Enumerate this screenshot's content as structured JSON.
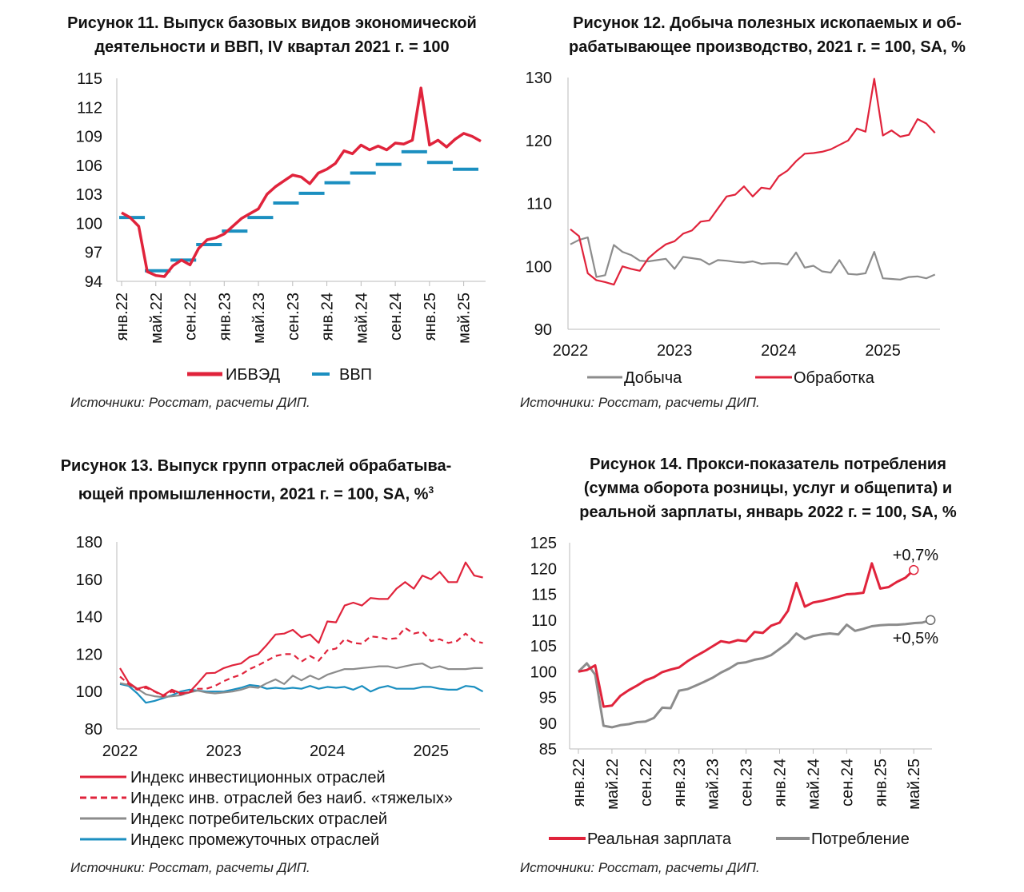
{
  "charts": [
    {
      "title_line1": "Рисунок 11. Выпуск базовых видов экономической",
      "title_line2": "деятельности и ВВП, IV квартал 2021 г. = 100",
      "source": "Источники: Росстат, расчеты ДИП.",
      "legend": [
        "ИБВЭД",
        "ВВП"
      ]
    },
    {
      "title_line1": "Рисунок 12. Добыча полезных ископаемых и об-",
      "title_line2": "рабатывающее производство, 2021 г. = 100, SA, %",
      "source": "Источники: Росстат, расчеты ДИП.",
      "legend": [
        "Добыча",
        "Обработка"
      ]
    },
    {
      "title_line1": "Рисунок 13. Выпуск групп отраслей обрабатыва-",
      "title_line2": "ющей промышленности, 2021 г. = 100, SA, %",
      "title_sup": "3",
      "source": "Источники: Росстат, расчеты ДИП.",
      "legend": [
        "Индекс инвестиционных отраслей",
        "Индекс инв. отраслей без наиб. «тяжелых»",
        "Индекс потребительских отраслей",
        "Индекс промежуточных отраслей"
      ]
    },
    {
      "title_line1": "Рисунок 14. Прокси-показатель потребления",
      "title_line2": "(сумма оборота розницы, услуг и общепита) и",
      "title_line3": "реальной зарплаты, январь 2022 г. = 100, SA, %",
      "source": "Источники: Росстат, расчеты ДИП.",
      "legend": [
        "Реальная зарплата",
        "Потребление"
      ],
      "annotations": [
        "+0,7%",
        "+0,5%"
      ]
    }
  ],
  "chart_data": [
    {
      "type": "line",
      "ylim": [
        94,
        115
      ],
      "yticks": [
        94,
        97,
        100,
        103,
        106,
        109,
        112,
        115
      ],
      "xticks": [
        "янв.22",
        "май.22",
        "сен.22",
        "янв.23",
        "май.23",
        "сен.23",
        "янв.24",
        "май.24",
        "сен.24",
        "янв.25",
        "май.25"
      ],
      "x_start": "2022-01",
      "colors": {
        "ibved": "#e0233b",
        "gdp": "#1b8fc0"
      },
      "series": [
        {
          "name": "ИБВЭД",
          "style": "line",
          "values": [
            101.1,
            100.6,
            99.7,
            95.0,
            94.6,
            94.5,
            95.6,
            96.2,
            95.7,
            97.4,
            98.3,
            98.5,
            98.9,
            99.7,
            100.5,
            101.0,
            101.5,
            103.0,
            103.8,
            104.4,
            105.0,
            104.8,
            104.1,
            105.2,
            105.6,
            106.2,
            107.5,
            107.2,
            108.1,
            107.6,
            108.0,
            107.6,
            108.3,
            108.2,
            108.6,
            114.0,
            108.1,
            108.6,
            107.9,
            108.7,
            109.3,
            109.0,
            108.5
          ]
        },
        {
          "name": "ВВП",
          "style": "dash-quarterly",
          "quarters": [
            "2022Q1",
            "2022Q2",
            "2022Q3",
            "2022Q4",
            "2023Q1",
            "2023Q2",
            "2023Q3",
            "2023Q4",
            "2024Q1",
            "2024Q2",
            "2024Q3",
            "2024Q4",
            "2025Q1",
            "2025Q2"
          ],
          "values": [
            100.6,
            95.1,
            96.2,
            97.8,
            99.2,
            100.6,
            102.1,
            103.1,
            104.2,
            105.2,
            106.1,
            107.4,
            106.3,
            105.6
          ]
        }
      ]
    },
    {
      "type": "line",
      "ylim": [
        90,
        130
      ],
      "yticks": [
        90,
        100,
        110,
        120,
        130
      ],
      "xticks": [
        "2022",
        "2023",
        "2024",
        "2025"
      ],
      "x_start": "2022-01",
      "colors": {
        "mining": "#8c8c8c",
        "manufacturing": "#e0233b"
      },
      "series": [
        {
          "name": "Добыча",
          "values": [
            103.5,
            104.2,
            104.6,
            98.3,
            98.6,
            103.4,
            102.3,
            101.8,
            100.9,
            100.8,
            101.0,
            101.2,
            99.6,
            101.5,
            101.3,
            101.1,
            100.3,
            101.0,
            100.9,
            100.7,
            100.6,
            100.8,
            100.4,
            100.5,
            100.5,
            100.3,
            102.2,
            99.8,
            100.1,
            99.2,
            99.0,
            101.0,
            98.8,
            98.7,
            98.9,
            102.3,
            98.1,
            98.0,
            97.9,
            98.3,
            98.4,
            98.1,
            98.7
          ]
        },
        {
          "name": "Обработка",
          "values": [
            105.9,
            104.8,
            98.9,
            97.8,
            97.5,
            97.1,
            100.0,
            99.6,
            99.3,
            101.3,
            102.5,
            103.5,
            104.0,
            105.2,
            105.7,
            107.1,
            107.3,
            109.2,
            111.1,
            111.4,
            112.7,
            111.1,
            112.5,
            112.3,
            114.3,
            115.2,
            116.7,
            117.9,
            118.0,
            118.2,
            118.6,
            119.3,
            120.0,
            121.9,
            121.4,
            129.8,
            120.8,
            121.6,
            120.6,
            120.9,
            123.4,
            122.7,
            121.2
          ]
        }
      ]
    },
    {
      "type": "line",
      "ylim": [
        80,
        180
      ],
      "yticks": [
        80,
        100,
        120,
        140,
        160,
        180
      ],
      "xticks": [
        "2022",
        "2023",
        "2024",
        "2025"
      ],
      "x_start": "2022-01",
      "colors": {
        "invest": "#e0233b",
        "invest_light": "#e0233b",
        "consumer": "#8c8c8c",
        "intermediate": "#1b8fc0"
      },
      "series": [
        {
          "name": "Индекс инвестиционных отраслей",
          "style": "solid",
          "values": [
            112.5,
            104.8,
            101.5,
            102.7,
            100.2,
            98.0,
            101.0,
            99.2,
            99.5,
            104.5,
            109.8,
            110.0,
            112.5,
            114.0,
            115.0,
            118.5,
            120.0,
            125.0,
            130.5,
            131.0,
            133.0,
            129.0,
            130.5,
            126.0,
            137.5,
            137.0,
            146.0,
            147.5,
            146.0,
            150.0,
            149.5,
            149.5,
            155.0,
            158.5,
            155.0,
            162.0,
            160.0,
            164.0,
            158.5,
            158.5,
            169.0,
            162.0,
            161.0
          ]
        },
        {
          "name": "Индекс инв. отраслей без наиб. «тяжелых»",
          "style": "dash",
          "values": [
            108.0,
            104.0,
            101.0,
            102.0,
            100.0,
            97.5,
            100.0,
            98.5,
            99.5,
            101.5,
            101.5,
            103.0,
            105.5,
            107.5,
            109.0,
            112.0,
            114.0,
            116.5,
            119.0,
            120.0,
            120.0,
            116.0,
            119.0,
            116.5,
            122.0,
            123.0,
            128.0,
            126.0,
            125.5,
            129.5,
            129.0,
            128.0,
            128.5,
            134.0,
            131.0,
            132.0,
            127.0,
            128.0,
            126.0,
            127.0,
            131.0,
            127.0,
            126.0
          ]
        },
        {
          "name": "Индекс потребительских отраслей",
          "style": "solid",
          "values": [
            104.5,
            103.5,
            101.5,
            98.5,
            97.5,
            97.0,
            97.5,
            98.0,
            99.5,
            100.5,
            99.5,
            99.0,
            99.5,
            100.0,
            101.0,
            102.5,
            102.0,
            104.5,
            106.5,
            104.0,
            108.5,
            106.0,
            108.5,
            106.5,
            109.0,
            110.5,
            112.0,
            112.0,
            112.5,
            113.0,
            113.5,
            113.5,
            112.5,
            113.5,
            114.5,
            115.0,
            112.5,
            113.5,
            112.0,
            112.0,
            112.0,
            112.5,
            112.5
          ]
        },
        {
          "name": "Индекс промежуточных отраслей",
          "style": "solid",
          "values": [
            104.0,
            103.0,
            99.0,
            94.0,
            95.0,
            96.5,
            98.0,
            100.0,
            101.0,
            100.5,
            100.0,
            100.0,
            100.0,
            101.0,
            102.0,
            103.5,
            103.0,
            101.5,
            102.0,
            101.5,
            102.0,
            101.5,
            103.0,
            101.5,
            102.5,
            102.0,
            102.5,
            101.0,
            103.0,
            100.0,
            102.0,
            103.0,
            101.5,
            101.5,
            101.5,
            102.5,
            102.5,
            101.5,
            101.0,
            101.0,
            103.0,
            102.5,
            100.0
          ]
        }
      ]
    },
    {
      "type": "line",
      "ylim": [
        85,
        125
      ],
      "yticks": [
        85,
        90,
        95,
        100,
        105,
        110,
        115,
        120,
        125
      ],
      "xticks": [
        "янв.22",
        "май.22",
        "сен.22",
        "янв.23",
        "май.23",
        "сен.23",
        "янв.24",
        "май.24",
        "сен.24",
        "янв.25",
        "май.25"
      ],
      "x_start": "2022-01",
      "colors": {
        "wage": "#e0233b",
        "consumption": "#8c8c8c"
      },
      "series": [
        {
          "name": "Реальная зарплата",
          "values": [
            100.0,
            100.3,
            101.2,
            93.2,
            93.4,
            95.3,
            96.4,
            97.3,
            98.3,
            98.9,
            99.9,
            100.4,
            100.8,
            102.0,
            103.0,
            103.9,
            104.9,
            105.9,
            105.6,
            106.1,
            105.9,
            107.7,
            107.5,
            108.9,
            109.5,
            111.8,
            117.2,
            112.6,
            113.4,
            113.7,
            114.1,
            114.5,
            115.0,
            115.1,
            115.3,
            121.0,
            116.1,
            116.4,
            117.4,
            118.2,
            119.7
          ]
        },
        {
          "name": "Потребление",
          "values": [
            100.0,
            101.6,
            99.4,
            89.5,
            89.2,
            89.6,
            89.8,
            90.2,
            90.3,
            91.0,
            93.0,
            92.9,
            96.3,
            96.6,
            97.3,
            98.0,
            98.8,
            99.8,
            100.6,
            101.6,
            101.8,
            102.3,
            102.6,
            103.2,
            104.4,
            105.6,
            107.4,
            106.3,
            106.9,
            107.2,
            107.4,
            107.2,
            109.1,
            107.9,
            108.3,
            108.8,
            109.0,
            109.1,
            109.1,
            109.2,
            109.4,
            109.5,
            110.0
          ]
        }
      ]
    }
  ]
}
